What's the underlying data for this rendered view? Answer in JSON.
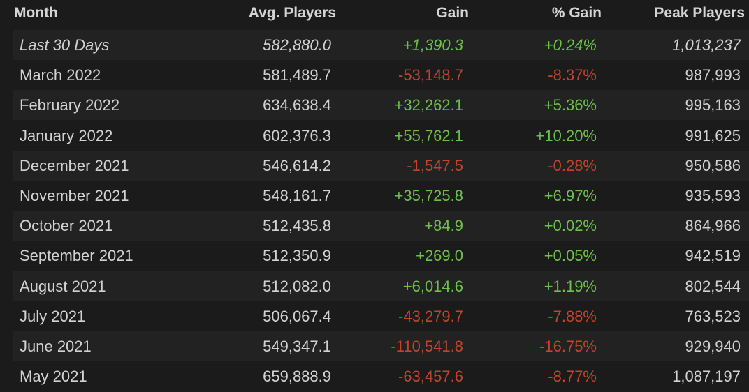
{
  "header": {
    "month": "Month",
    "avg_players": "Avg. Players",
    "gain": "Gain",
    "pct_gain": "% Gain",
    "peak_players": "Peak Players"
  },
  "colors": {
    "positive": "#6fc04a",
    "negative": "#c0442e",
    "row_dark": "#1b1b1b",
    "row_light": "#222222",
    "text": "#d2d2d2"
  },
  "rows": [
    {
      "month": "Last 30 Days",
      "avg": "582,880.0",
      "gain": "+1,390.3",
      "pct": "+0.24%",
      "peak": "1,013,237",
      "trend": "pos",
      "italic": true
    },
    {
      "month": "March 2022",
      "avg": "581,489.7",
      "gain": "-53,148.7",
      "pct": "-8.37%",
      "peak": "987,993",
      "trend": "neg"
    },
    {
      "month": "February 2022",
      "avg": "634,638.4",
      "gain": "+32,262.1",
      "pct": "+5.36%",
      "peak": "995,163",
      "trend": "pos"
    },
    {
      "month": "January 2022",
      "avg": "602,376.3",
      "gain": "+55,762.1",
      "pct": "+10.20%",
      "peak": "991,625",
      "trend": "pos"
    },
    {
      "month": "December 2021",
      "avg": "546,614.2",
      "gain": "-1,547.5",
      "pct": "-0.28%",
      "peak": "950,586",
      "trend": "neg"
    },
    {
      "month": "November 2021",
      "avg": "548,161.7",
      "gain": "+35,725.8",
      "pct": "+6.97%",
      "peak": "935,593",
      "trend": "pos"
    },
    {
      "month": "October 2021",
      "avg": "512,435.8",
      "gain": "+84.9",
      "pct": "+0.02%",
      "peak": "864,966",
      "trend": "pos"
    },
    {
      "month": "September 2021",
      "avg": "512,350.9",
      "gain": "+269.0",
      "pct": "+0.05%",
      "peak": "942,519",
      "trend": "pos"
    },
    {
      "month": "August 2021",
      "avg": "512,082.0",
      "gain": "+6,014.6",
      "pct": "+1.19%",
      "peak": "802,544",
      "trend": "pos"
    },
    {
      "month": "July 2021",
      "avg": "506,067.4",
      "gain": "-43,279.7",
      "pct": "-7.88%",
      "peak": "763,523",
      "trend": "neg"
    },
    {
      "month": "June 2021",
      "avg": "549,347.1",
      "gain": "-110,541.8",
      "pct": "-16.75%",
      "peak": "929,940",
      "trend": "neg"
    },
    {
      "month": "May 2021",
      "avg": "659,888.9",
      "gain": "-63,457.6",
      "pct": "-8.77%",
      "peak": "1,087,197",
      "trend": "neg"
    }
  ]
}
